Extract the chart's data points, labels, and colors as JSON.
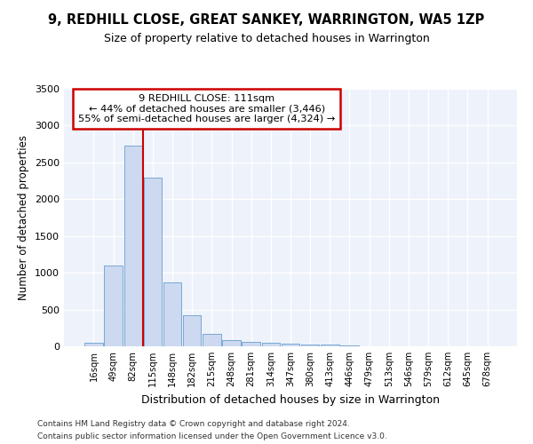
{
  "title": "9, REDHILL CLOSE, GREAT SANKEY, WARRINGTON, WA5 1ZP",
  "subtitle": "Size of property relative to detached houses in Warrington",
  "xlabel": "Distribution of detached houses by size in Warrington",
  "ylabel": "Number of detached properties",
  "bar_color": "#ccd9f0",
  "bar_edge_color": "#7baad4",
  "background_color": "#edf2fb",
  "grid_color": "#ffffff",
  "categories": [
    "16sqm",
    "49sqm",
    "82sqm",
    "115sqm",
    "148sqm",
    "182sqm",
    "215sqm",
    "248sqm",
    "281sqm",
    "314sqm",
    "347sqm",
    "380sqm",
    "413sqm",
    "446sqm",
    "479sqm",
    "513sqm",
    "546sqm",
    "579sqm",
    "612sqm",
    "645sqm",
    "678sqm"
  ],
  "values": [
    50,
    1100,
    2730,
    2290,
    870,
    420,
    170,
    90,
    65,
    50,
    40,
    30,
    20,
    10,
    0,
    0,
    0,
    0,
    0,
    0,
    0
  ],
  "ylim": [
    0,
    3500
  ],
  "yticks": [
    0,
    500,
    1000,
    1500,
    2000,
    2500,
    3000,
    3500
  ],
  "vline_x_index": 2.5,
  "annotation_box_color": "#ffffff",
  "annotation_border_color": "#cc0000",
  "vline_color": "#cc0000",
  "annotation_line1": "9 REDHILL CLOSE: 111sqm",
  "annotation_line2": "← 44% of detached houses are smaller (3,446)",
  "annotation_line3": "55% of semi-detached houses are larger (4,324) →",
  "footnote1": "Contains HM Land Registry data © Crown copyright and database right 2024.",
  "footnote2": "Contains public sector information licensed under the Open Government Licence v3.0."
}
